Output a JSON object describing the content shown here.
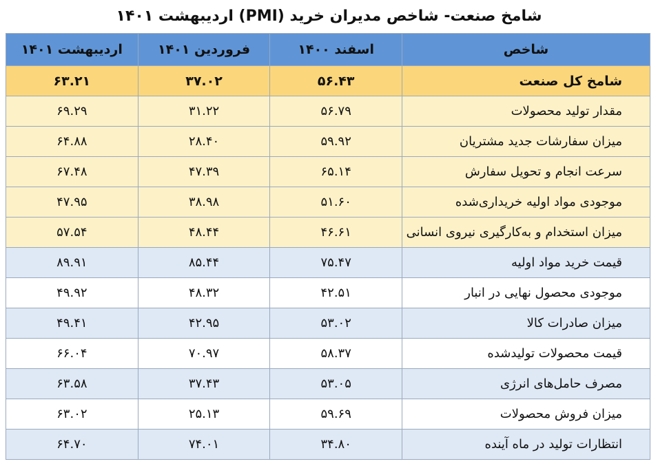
{
  "title": "شامخ صنعت- شاخص مدیران خرید (PMI) اردیبهشت ۱۴۰۱",
  "columns": {
    "label": "شاخص",
    "c1": "اسفند ۱۴۰۰",
    "c2": "فروردین ۱۴۰۱",
    "c3": "اردیبهشت ۱۴۰۱"
  },
  "rows": [
    {
      "label": "شامخ کل صنعت",
      "c1": "۵۶.۴۳",
      "c2": "۳۷.۰۲",
      "c3": "۶۳.۲۱",
      "style": "highlight"
    },
    {
      "label": "مقدار تولید محصولات",
      "c1": "۵۶.۷۹",
      "c2": "۳۱.۲۲",
      "c3": "۶۹.۲۹",
      "style": "light-yellow"
    },
    {
      "label": "میزان سفارشات جدید مشتریان",
      "c1": "۵۹.۹۲",
      "c2": "۲۸.۴۰",
      "c3": "۶۴.۸۸",
      "style": "light-yellow"
    },
    {
      "label": "سرعت انجام و تحویل سفارش",
      "c1": "۶۵.۱۴",
      "c2": "۴۷.۳۹",
      "c3": "۶۷.۴۸",
      "style": "light-yellow"
    },
    {
      "label": "موجودی مواد اولیه خریداری‌شده",
      "c1": "۵۱.۶۰",
      "c2": "۳۸.۹۸",
      "c3": "۴۷.۹۵",
      "style": "light-yellow"
    },
    {
      "label": "میزان استخدام و به‌کارگیری نیروی انسانی",
      "c1": "۴۶.۶۱",
      "c2": "۴۸.۴۴",
      "c3": "۵۷.۵۴",
      "style": "light-yellow"
    },
    {
      "label": "قیمت خرید مواد اولیه",
      "c1": "۷۵.۴۷",
      "c2": "۸۵.۴۴",
      "c3": "۸۹.۹۱",
      "style": "light-blue"
    },
    {
      "label": "موجودی محصول نهایی در انبار",
      "c1": "۴۲.۵۱",
      "c2": "۴۸.۳۲",
      "c3": "۴۹.۹۲",
      "style": "white"
    },
    {
      "label": "میزان صادرات کالا",
      "c1": "۵۳.۰۲",
      "c2": "۴۲.۹۵",
      "c3": "۴۹.۴۱",
      "style": "light-blue"
    },
    {
      "label": "قیمت محصولات تولیدشده",
      "c1": "۵۸.۳۷",
      "c2": "۷۰.۹۷",
      "c3": "۶۶.۰۴",
      "style": "white"
    },
    {
      "label": "مصرف حامل‌های انرژی",
      "c1": "۵۳.۰۵",
      "c2": "۳۷.۴۳",
      "c3": "۶۳.۵۸",
      "style": "light-blue"
    },
    {
      "label": "میزان فروش محصولات",
      "c1": "۵۹.۶۹",
      "c2": "۲۵.۱۳",
      "c3": "۶۳.۰۲",
      "style": "white"
    },
    {
      "label": "انتظارات تولید در ماه آینده",
      "c1": "۳۴.۸۰",
      "c2": "۷۴.۰۱",
      "c3": "۶۴.۷۰",
      "style": "light-blue"
    }
  ],
  "colors": {
    "header": "#5f95d6",
    "highlight": "#fbd67a",
    "light_yellow": "#fdf1c8",
    "light_blue": "#dfe9f5",
    "border": "#9aa9bf"
  }
}
